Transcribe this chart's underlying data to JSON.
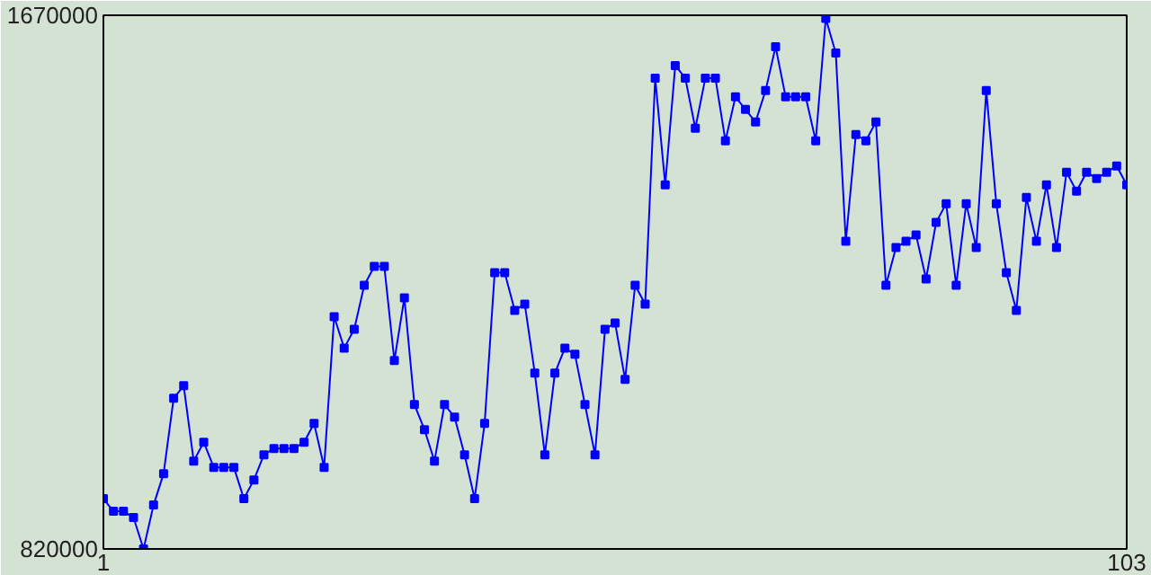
{
  "chart_data": {
    "type": "line",
    "x": [
      1,
      2,
      3,
      4,
      5,
      6,
      7,
      8,
      9,
      10,
      11,
      12,
      13,
      14,
      15,
      16,
      17,
      18,
      19,
      20,
      21,
      22,
      23,
      24,
      25,
      26,
      27,
      28,
      29,
      30,
      31,
      32,
      33,
      34,
      35,
      36,
      37,
      38,
      39,
      40,
      41,
      42,
      43,
      44,
      45,
      46,
      47,
      48,
      49,
      50,
      51,
      52,
      53,
      54,
      55,
      56,
      57,
      58,
      59,
      60,
      61,
      62,
      63,
      64,
      65,
      66,
      67,
      68,
      69,
      70,
      71,
      72,
      73,
      74,
      75,
      76,
      77,
      78,
      79,
      80,
      81,
      82,
      83,
      84,
      85,
      86,
      87,
      88,
      89,
      90,
      91,
      92,
      93,
      94,
      95,
      96,
      97,
      98,
      99,
      100,
      101,
      102,
      103
    ],
    "series": [
      {
        "color": "#0000ff",
        "values": [
          900000,
          880000,
          880000,
          870000,
          820000,
          890000,
          940000,
          1060000,
          1080000,
          960000,
          990000,
          950000,
          950000,
          950000,
          900000,
          930000,
          970000,
          980000,
          980000,
          980000,
          990000,
          1020000,
          950000,
          1190000,
          1140000,
          1170000,
          1240000,
          1270000,
          1270000,
          1120000,
          1220000,
          1050000,
          1010000,
          960000,
          1050000,
          1030000,
          970000,
          900000,
          1020000,
          1260000,
          1260000,
          1200000,
          1210000,
          1100000,
          970000,
          1100000,
          1140000,
          1130000,
          1050000,
          970000,
          1170000,
          1180000,
          1090000,
          1240000,
          1210000,
          1570000,
          1400000,
          1590000,
          1570000,
          1490000,
          1570000,
          1570000,
          1470000,
          1540000,
          1520000,
          1500000,
          1550000,
          1620000,
          1540000,
          1540000,
          1540000,
          1470000,
          1665000,
          1610000,
          1310000,
          1480000,
          1470000,
          1500000,
          1240000,
          1300000,
          1310000,
          1320000,
          1250000,
          1340000,
          1370000,
          1240000,
          1370000,
          1300000,
          1550000,
          1370000,
          1260000,
          1200000,
          1380000,
          1310000,
          1400000,
          1300000,
          1420000,
          1390000,
          1420000,
          1410000,
          1420000,
          1430000,
          1400000
        ]
      }
    ],
    "xlim": [
      1,
      103
    ],
    "ylim": [
      820000,
      1670000
    ],
    "xticks": [
      1,
      103
    ],
    "yticks": [
      820000,
      1670000
    ],
    "marker": "square",
    "line_style": "solid"
  }
}
